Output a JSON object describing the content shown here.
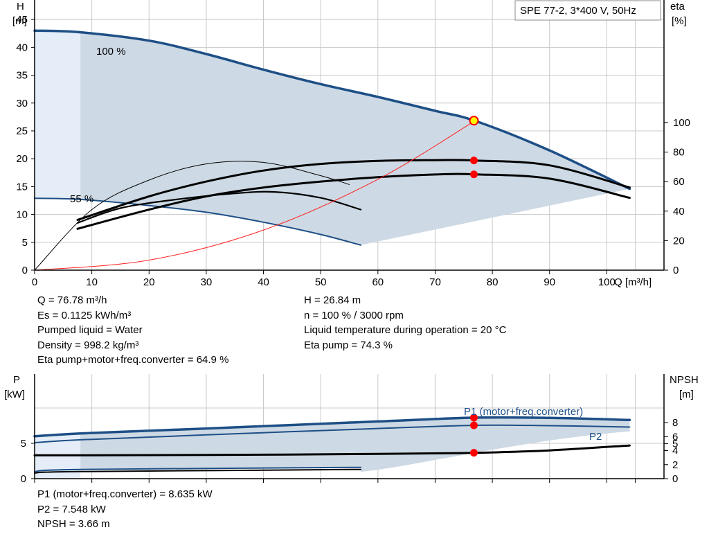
{
  "chart_data": [
    {
      "type": "line",
      "title": "SPE 77-2, 3*400 V, 50Hz",
      "xlabel": "Q [m³/h]",
      "ylabel": "H",
      "yunit": "[m]",
      "y2label": "eta",
      "y2unit": "[%]",
      "xlim": [
        0,
        110
      ],
      "ylim": [
        0,
        48.5
      ],
      "y2lim": [
        0,
        100
      ],
      "xticks": [
        0,
        10,
        20,
        30,
        40,
        50,
        60,
        70,
        80,
        90,
        100
      ],
      "yticks": [
        0,
        5,
        10,
        15,
        20,
        25,
        30,
        35,
        40,
        45
      ],
      "y2ticks": [
        0,
        20,
        40,
        60,
        80,
        100
      ],
      "grid": true,
      "curve_labels": [
        "100 %",
        "55 %"
      ],
      "series": [
        {
          "name": "100 %",
          "axis": "H",
          "color": "#1d4f86",
          "x": [
            0,
            8,
            20,
            30,
            40,
            50,
            60,
            70,
            77,
            90,
            104
          ],
          "y": [
            43,
            42.7,
            41.2,
            38.8,
            36,
            33.4,
            31.1,
            28.6,
            26.8,
            21.5,
            14.6
          ]
        },
        {
          "name": "55 %",
          "axis": "H",
          "color": "#1d4f86",
          "x": [
            0,
            8,
            20,
            30,
            40,
            50,
            57
          ],
          "y": [
            12.9,
            12.7,
            11.6,
            10.4,
            8.6,
            6.4,
            4.5
          ]
        },
        {
          "name": "",
          "axis": "eta",
          "color": "#000000",
          "x": [
            7.5,
            20,
            30,
            40,
            50,
            60,
            70,
            77,
            90,
            104
          ],
          "y": [
            34,
            50,
            60,
            67.5,
            72,
            74,
            74.5,
            74.3,
            71,
            56
          ]
        },
        {
          "name": "",
          "axis": "eta",
          "color": "#000000",
          "x": [
            7.5,
            20,
            30,
            40,
            50,
            60,
            70,
            77,
            90,
            104
          ],
          "y": [
            28,
            41,
            50,
            56,
            60,
            63,
            64.8,
            64.9,
            62,
            49
          ]
        },
        {
          "name": "",
          "axis": "eta",
          "color": "#000000",
          "x": [
            7.5,
            15,
            25,
            35,
            42,
            50,
            57
          ],
          "y": [
            32,
            42,
            48,
            52,
            53,
            49,
            41
          ]
        },
        {
          "name": "",
          "axis": "eta",
          "color": "#000000",
          "x": [
            0,
            10,
            20,
            30,
            40,
            50,
            55
          ],
          "y": [
            0,
            41,
            61,
            72,
            73,
            64,
            58
          ]
        },
        {
          "name": "",
          "axis": "H",
          "color": "#ff2020",
          "x": [
            0,
            20,
            40,
            60,
            77
          ],
          "y": [
            0,
            1.8,
            7.2,
            16.3,
            26.84
          ]
        }
      ],
      "operating_point": {
        "x": 76.78,
        "H": 26.84,
        "eta_pump": 74.3,
        "eta_total": 64.9
      }
    },
    {
      "type": "line",
      "xlabel": "",
      "ylabel": "P",
      "yunit": "[kW]",
      "y2label": "NPSH",
      "y2unit": "[m]",
      "xlim": [
        0,
        110
      ],
      "ylim": [
        0,
        10
      ],
      "y2lim": [
        0,
        10
      ],
      "yticks": [
        0,
        5
      ],
      "y2ticks": [
        0,
        2,
        4,
        5,
        6,
        8
      ],
      "grid": true,
      "curve_labels": [
        "P1 (motor+freq.converter)",
        "P2"
      ],
      "series": [
        {
          "name": "P1 (motor+freq.converter)",
          "axis": "P",
          "color": "#1d4f86",
          "x": [
            0,
            8,
            30,
            60,
            77,
            90,
            104
          ],
          "y": [
            6.0,
            6.4,
            7.1,
            8.1,
            8.635,
            8.6,
            8.3
          ]
        },
        {
          "name": "P2",
          "axis": "P",
          "color": "#1d4f86",
          "x": [
            0,
            8,
            30,
            60,
            77,
            90,
            104
          ],
          "y": [
            5.1,
            5.5,
            6.2,
            7.1,
            7.548,
            7.5,
            7.3
          ]
        },
        {
          "name": "",
          "axis": "P",
          "color": "#1d4f86",
          "x": [
            0,
            8,
            57
          ],
          "y": [
            1.0,
            1.3,
            1.6
          ]
        },
        {
          "name": "",
          "axis": "P",
          "color": "#000000",
          "x": [
            0,
            8,
            57
          ],
          "y": [
            0.8,
            1.0,
            1.3
          ]
        },
        {
          "name": "",
          "axis": "NPSH",
          "color": "#000000",
          "x": [
            0,
            8,
            30,
            60,
            77,
            90,
            104
          ],
          "y": [
            3.3,
            3.3,
            3.35,
            3.5,
            3.66,
            4.0,
            4.7
          ]
        }
      ]
    }
  ],
  "info_top_left": [
    "Q = 76.78 m³/h",
    "Es = 0.1125 kWh/m³",
    "Pumped liquid = Water",
    "Density = 998.2 kg/m³",
    "Eta pump+motor+freq.converter = 64.9 %"
  ],
  "info_top_right": [
    "H = 26.84 m",
    "n = 100 % / 3000 rpm",
    "Liquid temperature during operation = 20 °C",
    "Eta pump = 74.3 %"
  ],
  "info_bottom": [
    "P1 (motor+freq.converter) = 8.635 kW",
    "P2 = 7.548 kW",
    "NPSH = 3.66 m"
  ],
  "colors": {
    "curve": "#1d4f86",
    "area": "#cdd9e4",
    "area_light": "#e5eef8",
    "point": "#ff0000",
    "point_hi": "#ffff00"
  }
}
